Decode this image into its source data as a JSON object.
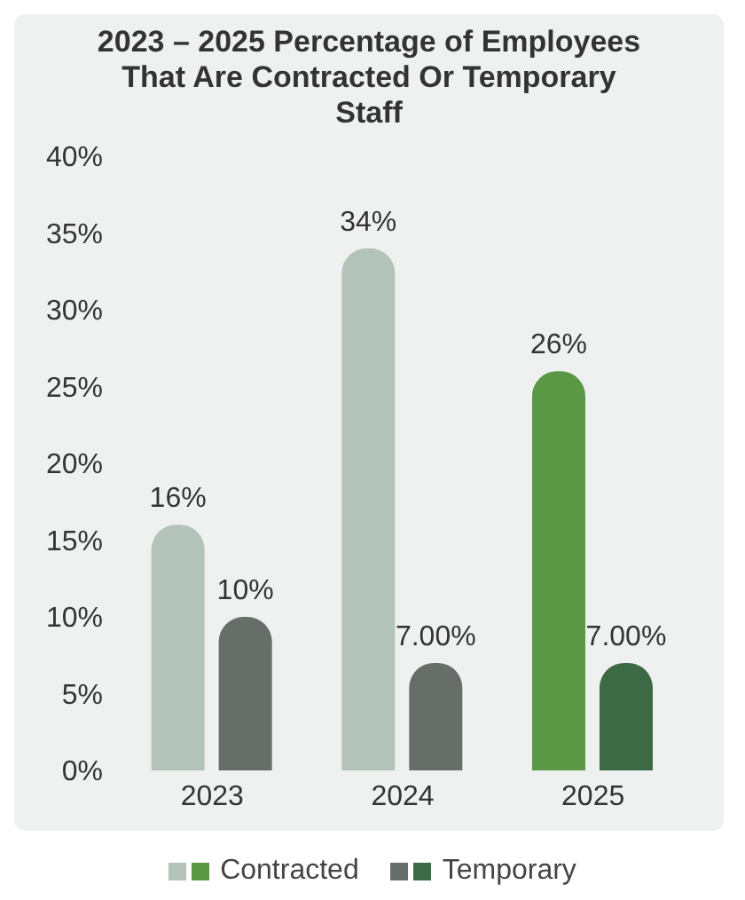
{
  "chart_data": {
    "type": "bar",
    "title": "2023 – 2025 Percentage of Employees That Are Contracted Or Temporary Staff",
    "categories": [
      "2023",
      "2024",
      "2025"
    ],
    "series": [
      {
        "name": "Contracted",
        "colors": [
          "#b3c3b9",
          "#b3c3b9",
          "#5a9846"
        ],
        "values": [
          16,
          34,
          26
        ],
        "value_labels": [
          "16%",
          "34%",
          "26%"
        ]
      },
      {
        "name": "Temporary",
        "colors": [
          "#676d69",
          "#676d69",
          "#3b6a45"
        ],
        "values": [
          10,
          7,
          7
        ],
        "value_labels": [
          "10%",
          "7.00%",
          "7.00%"
        ]
      }
    ],
    "ylim": [
      0,
      40
    ],
    "yticks": [
      {
        "value": 0,
        "label": "0%"
      },
      {
        "value": 5,
        "label": "5%"
      },
      {
        "value": 10,
        "label": "10%"
      },
      {
        "value": 15,
        "label": "15%"
      },
      {
        "value": 20,
        "label": "20%"
      },
      {
        "value": 25,
        "label": "25%"
      },
      {
        "value": 30,
        "label": "30%"
      },
      {
        "value": 35,
        "label": "35%"
      },
      {
        "value": 40,
        "label": "40%"
      }
    ],
    "grid": false,
    "legend": "bottom"
  }
}
